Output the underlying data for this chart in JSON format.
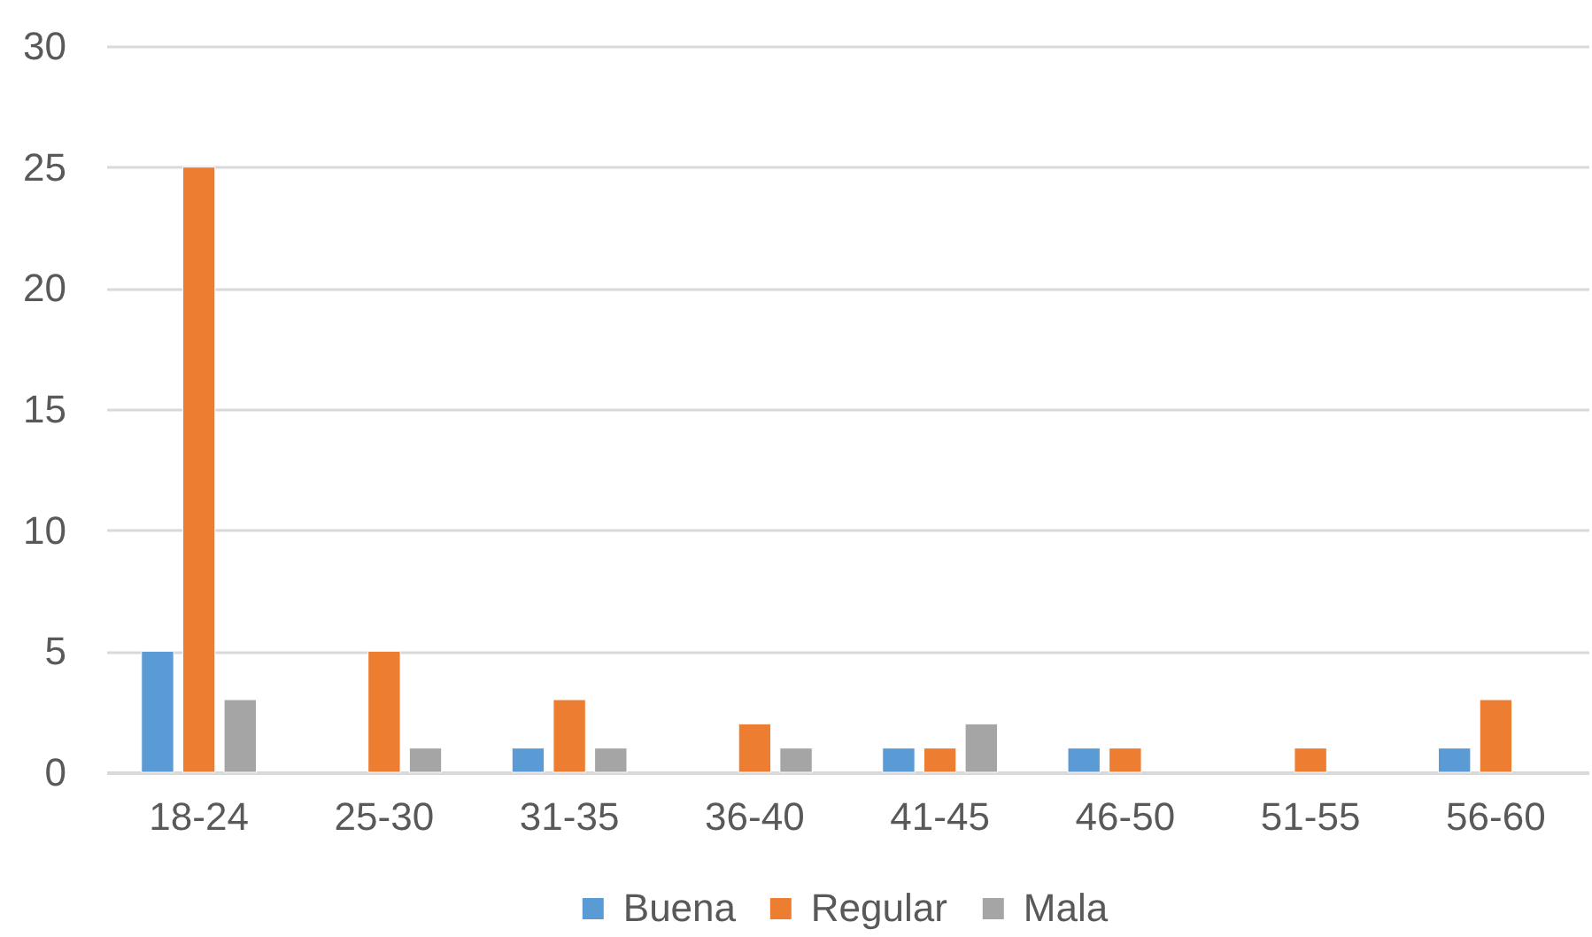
{
  "chart_data": {
    "type": "bar",
    "categories": [
      "18-24",
      "25-30",
      "31-35",
      "36-40",
      "41-45",
      "46-50",
      "51-55",
      "56-60"
    ],
    "series": [
      {
        "name": "Buena",
        "color": "#5b9bd5",
        "values": [
          5,
          null,
          1,
          null,
          1,
          1,
          null,
          1
        ]
      },
      {
        "name": "Regular",
        "color": "#ed7d31",
        "values": [
          25,
          5,
          3,
          2,
          1,
          1,
          1,
          3
        ]
      },
      {
        "name": "Mala",
        "color": "#a5a5a5",
        "values": [
          3,
          1,
          1,
          1,
          2,
          null,
          null,
          null
        ]
      }
    ],
    "ylim": [
      0,
      30
    ],
    "yticks": [
      0,
      5,
      10,
      15,
      20,
      25,
      30
    ],
    "grid": "y",
    "legend": "bottom"
  }
}
